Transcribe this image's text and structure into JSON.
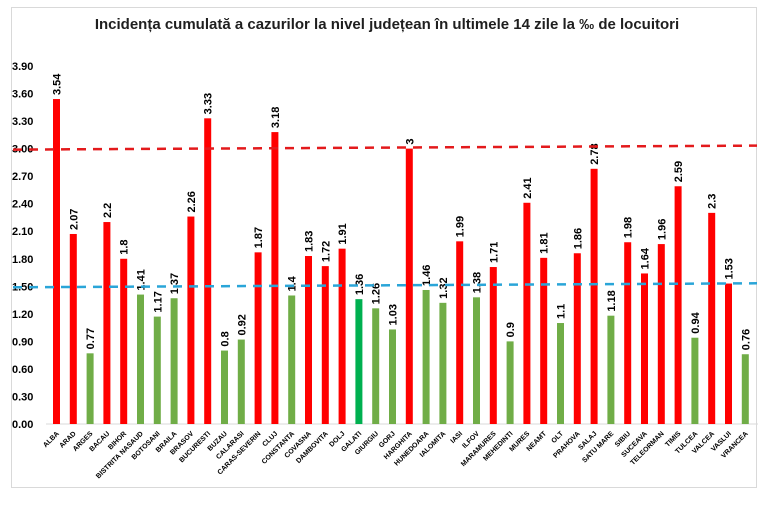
{
  "chart_data": {
    "type": "bar",
    "title": "Incidența cumulată a cazurilor la nivel județean în ultimele 14 zile la ‰ de locuitori",
    "xlabel": "",
    "ylabel": "",
    "ylim": [
      0,
      3.9
    ],
    "yticks": [
      "0.00",
      "0.30",
      "0.60",
      "0.90",
      "1.20",
      "1.50",
      "1.80",
      "2.10",
      "2.40",
      "2.70",
      "3.00",
      "3.30",
      "3.60",
      "3.90"
    ],
    "grid": false,
    "categories": [
      "ALBA",
      "ARAD",
      "ARGES",
      "BACAU",
      "BIHOR",
      "BISTRITA NASAUD",
      "BOTOSANI",
      "BRAILA",
      "BRASOV",
      "BUCURESTI",
      "BUZAU",
      "CALARASI",
      "CARAS-SEVERIN",
      "CLUJ",
      "CONSTANTA",
      "COVASNA",
      "DAMBOVITA",
      "DOLJ",
      "GALATI",
      "GIURGIU",
      "GORJ",
      "HARGHITA",
      "HUNEDOARA",
      "IALOMITA",
      "IASI",
      "ILFOV",
      "MARAMURES",
      "MEHEDINTI",
      "MURES",
      "NEAMT",
      "OLT",
      "PRAHOVA",
      "SALAJ",
      "SATU MARE",
      "SIBIU",
      "SUCEAVA",
      "TELEORMAN",
      "TIMIS",
      "TULCEA",
      "VALCEA",
      "VASLUI",
      "VRANCEA"
    ],
    "values": [
      3.54,
      2.07,
      0.77,
      2.2,
      1.8,
      1.41,
      1.17,
      1.37,
      2.26,
      3.33,
      0.8,
      0.92,
      1.87,
      3.18,
      1.4,
      1.83,
      1.72,
      1.91,
      1.36,
      1.26,
      1.03,
      3,
      1.46,
      1.32,
      1.99,
      1.38,
      1.71,
      0.9,
      2.41,
      1.81,
      1.1,
      1.86,
      2.78,
      1.18,
      1.98,
      1.64,
      1.96,
      2.59,
      0.94,
      2.3,
      1.53,
      0.76
    ],
    "data_labels": [
      "3.54",
      "2.07",
      "0.77",
      "2.2",
      "1.8",
      "1.41",
      "1.17",
      "1.37",
      "2.26",
      "3.33",
      "0.8",
      "0.92",
      "1.87",
      "3.18",
      "1.4",
      "1.83",
      "1.72",
      "1.91",
      "1.36",
      "1.26",
      "1.03",
      "3",
      "1.46",
      "1.32",
      "1.99",
      "1.38",
      "1.71",
      "0.9",
      "2.41",
      "1.81",
      "1.1",
      "1.86",
      "2.78",
      "1.18",
      "1.98",
      "1.64",
      "1.96",
      "2.59",
      "0.94",
      "2.3",
      "1.53",
      "0.76"
    ],
    "colors": {
      "above": "#ff0000",
      "below": "#70ad47",
      "highlight": "#00b050"
    },
    "highlight_category": "GALATI",
    "reference_lines": [
      {
        "value": 3.0,
        "color": "#e31a1c",
        "style": "dashed"
      },
      {
        "value": 1.5,
        "color": "#2aa5d8",
        "style": "dashed"
      }
    ]
  }
}
